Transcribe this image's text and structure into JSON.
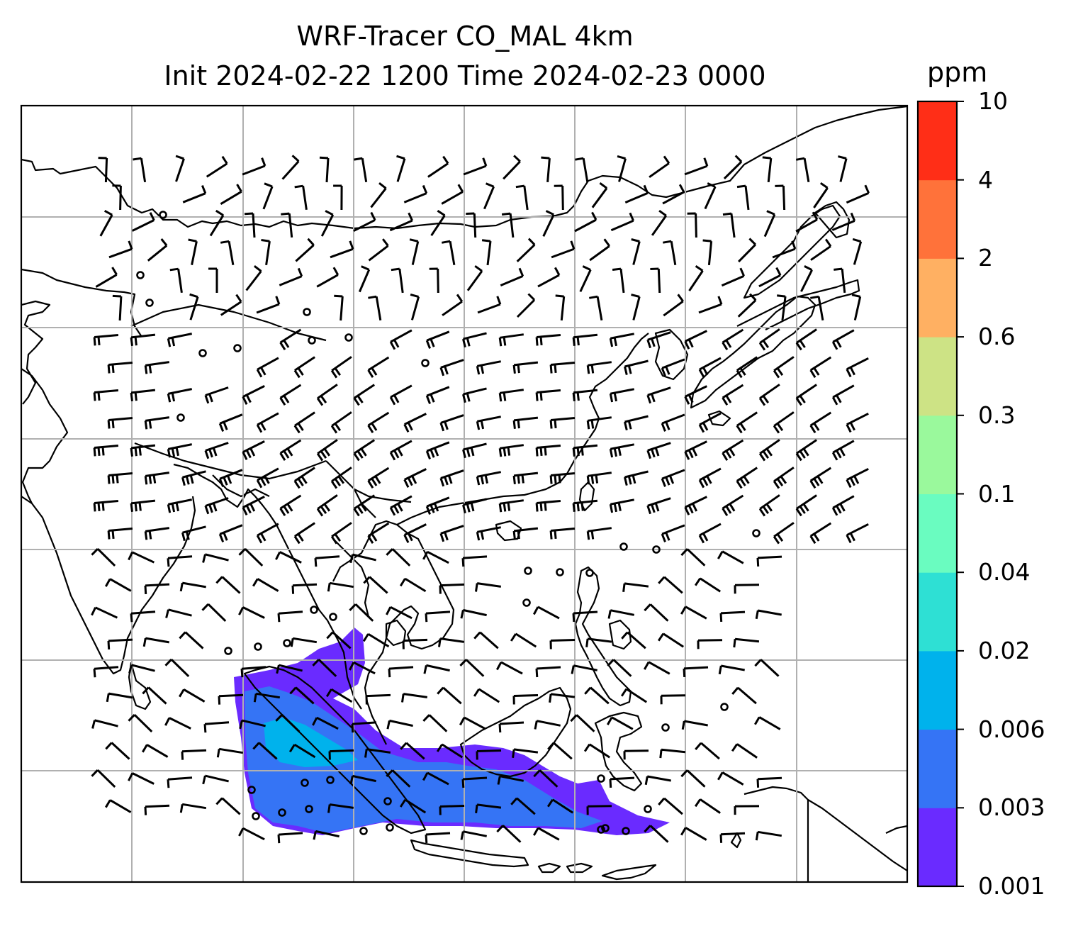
{
  "title": {
    "line1": "WRF-Tracer CO_MAL 4km",
    "line2": "Init 2024-02-22 1200 Time 2024-02-23 0000"
  },
  "colorbar": {
    "unit": "ppm",
    "levels": [
      "0.001",
      "0.003",
      "0.006",
      "0.02",
      "0.04",
      "0.1",
      "0.3",
      "0.6",
      "2",
      "4",
      "10"
    ],
    "colors": [
      "#6a2bff",
      "#3574f5",
      "#00b2ec",
      "#2ee0d4",
      "#6afcc0",
      "#9af99c",
      "#cde385",
      "#ffb062",
      "#ff723a",
      "#ff2e17"
    ]
  },
  "map": {
    "grid_color": "#b0b0b0",
    "coast_color": "#000000",
    "calm_marker": "circle",
    "barb_color": "#000000"
  }
}
